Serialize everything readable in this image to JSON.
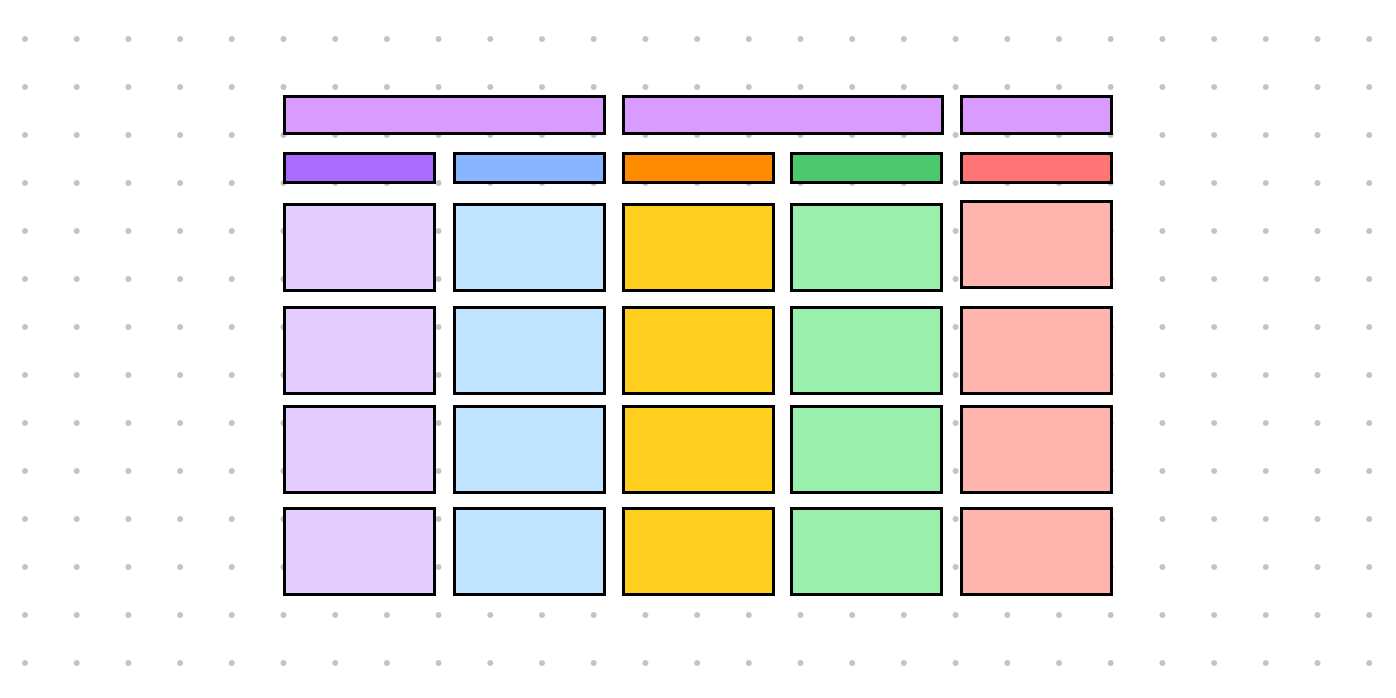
{
  "background": "#ffffff",
  "dot_color": "#c4c4c4",
  "border_color": "#000000",
  "header_colors": [
    "#d99bff",
    "#d99bff",
    "#d99bff"
  ],
  "column_header_colors": [
    "#aa6bff",
    "#87b5ff",
    "#ff8c00",
    "#4cc96e",
    "#ff7474"
  ],
  "column_cell_colors": [
    "#e3cdff",
    "#c0e3ff",
    "#ffce1f",
    "#98f0ac",
    "#ffb4ae"
  ],
  "rows": 4
}
